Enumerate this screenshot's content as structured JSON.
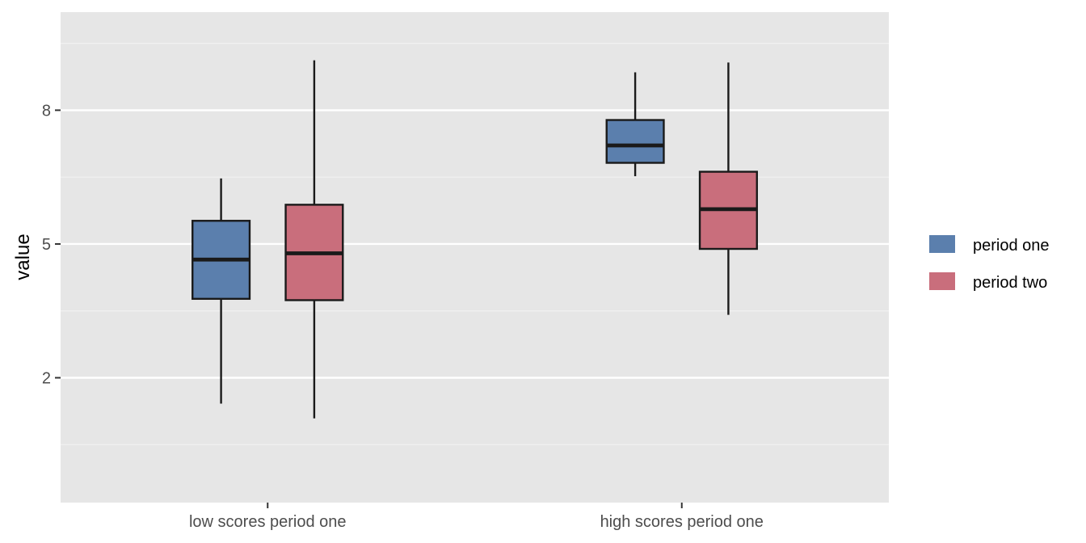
{
  "chart_data": {
    "type": "boxplot",
    "title": "",
    "xlabel": "",
    "ylabel": "value",
    "ylim": [
      -0.8,
      10.2
    ],
    "yticks": [
      2,
      5,
      8
    ],
    "categories": [
      "low scores period one",
      "high scores period one"
    ],
    "grid": true,
    "legend_position": "right",
    "series": [
      {
        "name": "period one",
        "color": "#5b7fad",
        "boxes": [
          {
            "lower_whisker": 1.42,
            "q1": 3.77,
            "median": 4.65,
            "q3": 5.52,
            "upper_whisker": 6.47
          },
          {
            "lower_whisker": 6.52,
            "q1": 6.82,
            "median": 7.21,
            "q3": 7.78,
            "upper_whisker": 8.85
          }
        ]
      },
      {
        "name": "period two",
        "color": "#c96e7c",
        "boxes": [
          {
            "lower_whisker": 1.09,
            "q1": 3.74,
            "median": 4.79,
            "q3": 5.88,
            "upper_whisker": 9.12
          },
          {
            "lower_whisker": 3.41,
            "q1": 4.89,
            "median": 5.78,
            "q3": 6.62,
            "upper_whisker": 9.07
          }
        ]
      }
    ]
  }
}
